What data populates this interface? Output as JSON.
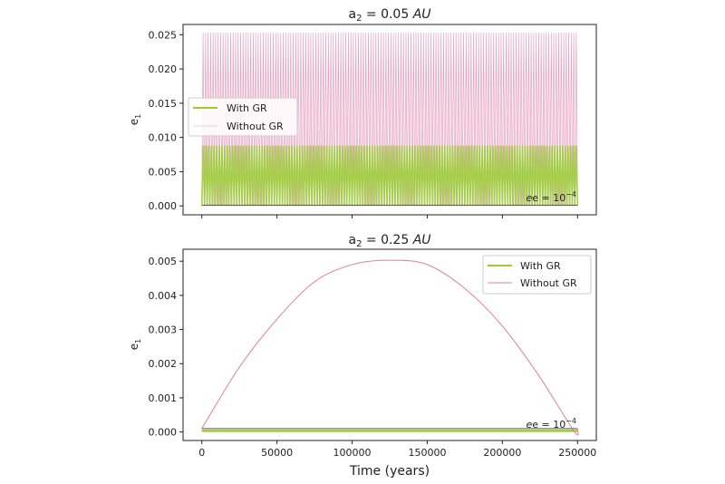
{
  "chart_data": [
    {
      "type": "line",
      "title": "a₂ = 0.05 AU",
      "title_parts": {
        "var": "a",
        "sub": "2",
        "eq": " = 0.05 ",
        "unit": "AU"
      },
      "xlabel": "",
      "ylabel": "e₁",
      "ylabel_parts": {
        "var": "e",
        "sub": "1"
      },
      "xlim": [
        -12500,
        262500
      ],
      "ylim": [
        -0.0013,
        0.0265
      ],
      "xticks": [
        0,
        50000,
        100000,
        150000,
        200000,
        250000
      ],
      "xtick_labels_shown": false,
      "yticks": [
        "0.000",
        "0.005",
        "0.010",
        "0.015",
        "0.020",
        "0.025"
      ],
      "grid": false,
      "legend": {
        "placement": "center-left",
        "entries": [
          "With GR",
          "Without GR"
        ]
      },
      "annotation": {
        "text": "e = 10",
        "exp": "−4",
        "value": 0.0001
      },
      "series": [
        {
          "name": "With GR",
          "color": "#9acd32",
          "pattern": "rapid oscillation",
          "min": 0.0,
          "max": 0.0088,
          "x_range": [
            0,
            250000
          ]
        },
        {
          "name": "Without GR",
          "color": "#e8a0c0",
          "pattern": "rapid oscillation",
          "min": 0.0,
          "max": 0.0253,
          "x_range": [
            0,
            250000
          ]
        }
      ],
      "reference_line": {
        "y": 0.0001,
        "color": "#555555"
      }
    },
    {
      "type": "line",
      "title": "a₂ = 0.25 AU",
      "title_parts": {
        "var": "a",
        "sub": "2",
        "eq": " = 0.25 ",
        "unit": "AU"
      },
      "xlabel": "Time (years)",
      "ylabel": "e₁",
      "ylabel_parts": {
        "var": "e",
        "sub": "1"
      },
      "xlim": [
        -12500,
        262500
      ],
      "ylim": [
        -0.00025,
        0.00535
      ],
      "xticks": [
        "0",
        "50000",
        "100000",
        "150000",
        "200000",
        "250000"
      ],
      "yticks": [
        "0.000",
        "0.001",
        "0.002",
        "0.003",
        "0.004",
        "0.005"
      ],
      "grid": false,
      "legend": {
        "placement": "top-right",
        "entries": [
          "With GR",
          "Without GR"
        ]
      },
      "annotation": {
        "text": "e = 10",
        "exp": "−4",
        "value": 0.0001
      },
      "series": [
        {
          "name": "With GR",
          "color": "#9acd32",
          "x": [
            0,
            250000
          ],
          "y": [
            3e-05,
            3e-05
          ]
        },
        {
          "name": "Without GR",
          "color": "#e07fa0",
          "x": [
            0,
            25000,
            50000,
            75000,
            100000,
            124000,
            150000,
            175000,
            200000,
            225000,
            248000,
            250000
          ],
          "y": [
            0.0001,
            0.0019,
            0.0033,
            0.0044,
            0.0049,
            0.00503,
            0.0049,
            0.0042,
            0.0031,
            0.0016,
            0.0,
            0.0001
          ]
        }
      ],
      "reference_line": {
        "y": 0.0001,
        "color": "#555555"
      }
    }
  ]
}
